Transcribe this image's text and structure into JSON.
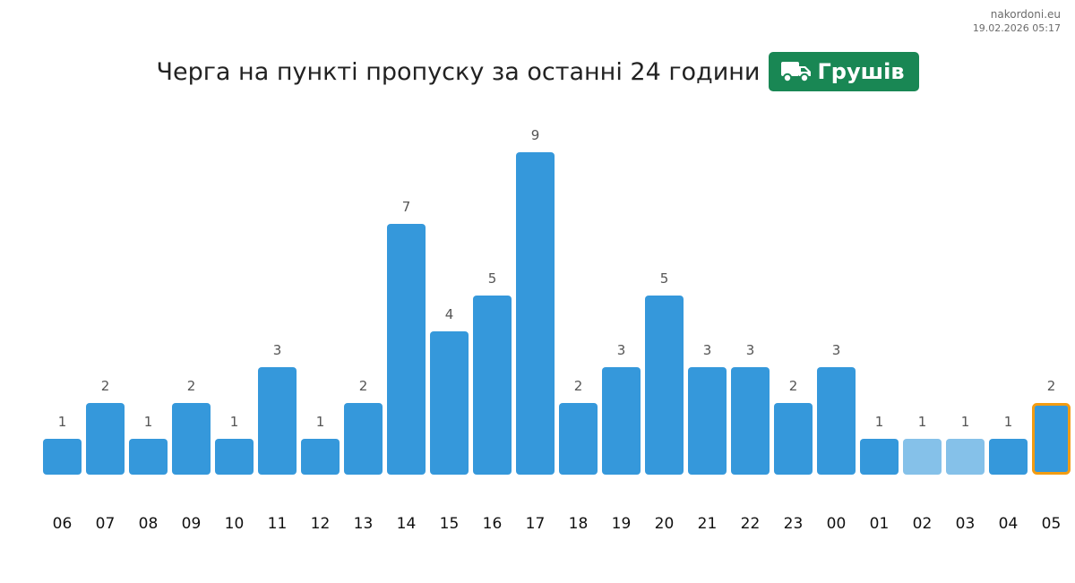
{
  "watermark": {
    "site": "nakordoni.eu",
    "timestamp": "19.02.2026 05:17"
  },
  "header": {
    "title": "Черга на пункті пропуску за останні 24 години",
    "badge_label": "Грушів",
    "badge_icon": "truck-icon",
    "badge_color": "#198754"
  },
  "chart_data": {
    "type": "bar",
    "categories": [
      "06",
      "07",
      "08",
      "09",
      "10",
      "11",
      "12",
      "13",
      "14",
      "15",
      "16",
      "17",
      "18",
      "19",
      "20",
      "21",
      "22",
      "23",
      "00",
      "01",
      "02",
      "03",
      "04",
      "05"
    ],
    "values": [
      1,
      2,
      1,
      2,
      1,
      3,
      1,
      2,
      7,
      4,
      5,
      9,
      2,
      3,
      5,
      3,
      3,
      2,
      3,
      1,
      1,
      1,
      1,
      2
    ],
    "ylim": [
      0,
      9
    ],
    "grid": false,
    "legend": "none",
    "colors": {
      "bar": "#3598db",
      "bar_light": "#85c1e9",
      "highlight_border": "#f39c12"
    },
    "light_categories": [
      "02",
      "03"
    ],
    "highlight_category": "05"
  }
}
